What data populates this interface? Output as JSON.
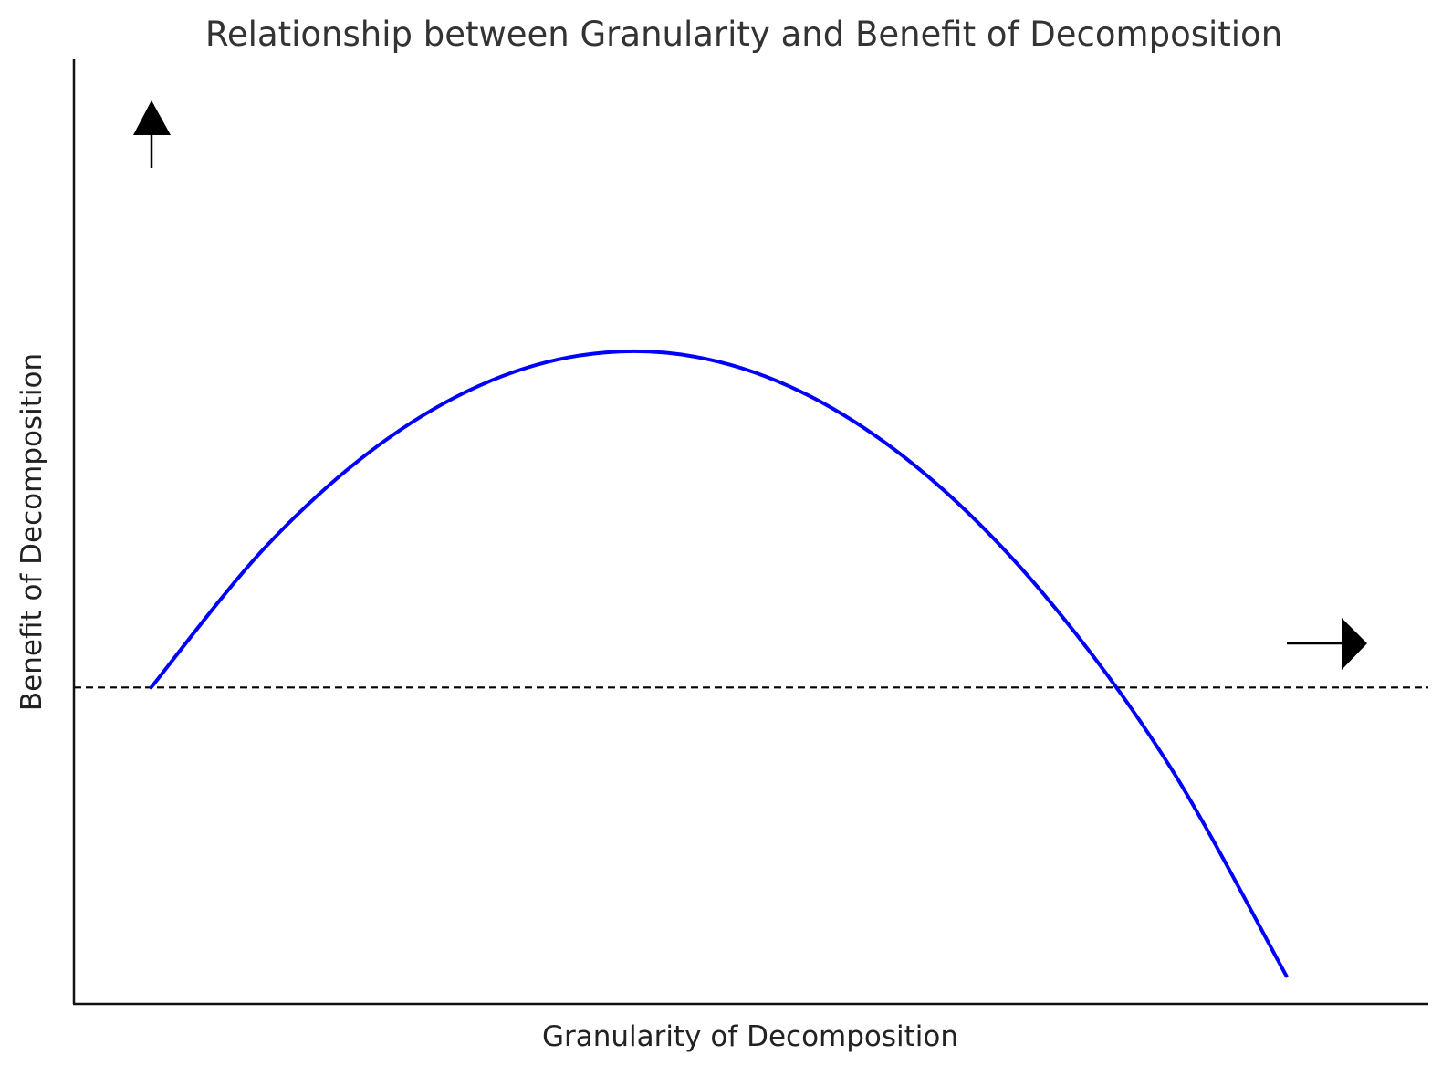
{
  "chart_data": {
    "type": "line",
    "title": "Relationship between Granularity and Benefit of Decomposition",
    "xlabel": "Granularity of Decomposition",
    "ylabel": "Benefit of Decomposition",
    "x_ticks": [],
    "y_ticks": [],
    "grid": false,
    "legend": "none",
    "series": [
      {
        "color": "#0000ff",
        "x": [
          0,
          0.1,
          0.2,
          0.3,
          0.4,
          0.5,
          0.6,
          0.7,
          0.8,
          0.9,
          1.0
        ],
        "y": [
          0,
          0.3,
          0.52,
          0.66,
          0.72,
          0.7,
          0.6,
          0.42,
          0.16,
          -0.18,
          -0.62
        ]
      }
    ],
    "reference_lines": [
      {
        "orientation": "horizontal",
        "y": 0,
        "style": "dashed",
        "color": "#000000"
      }
    ],
    "annotations": [
      {
        "type": "arrow",
        "direction": "up",
        "color": "#000000"
      },
      {
        "type": "arrow",
        "direction": "right",
        "color": "#000000"
      }
    ],
    "xlim": [
      -0.068,
      1.125
    ],
    "ylim": [
      -0.68,
      1.35
    ]
  }
}
